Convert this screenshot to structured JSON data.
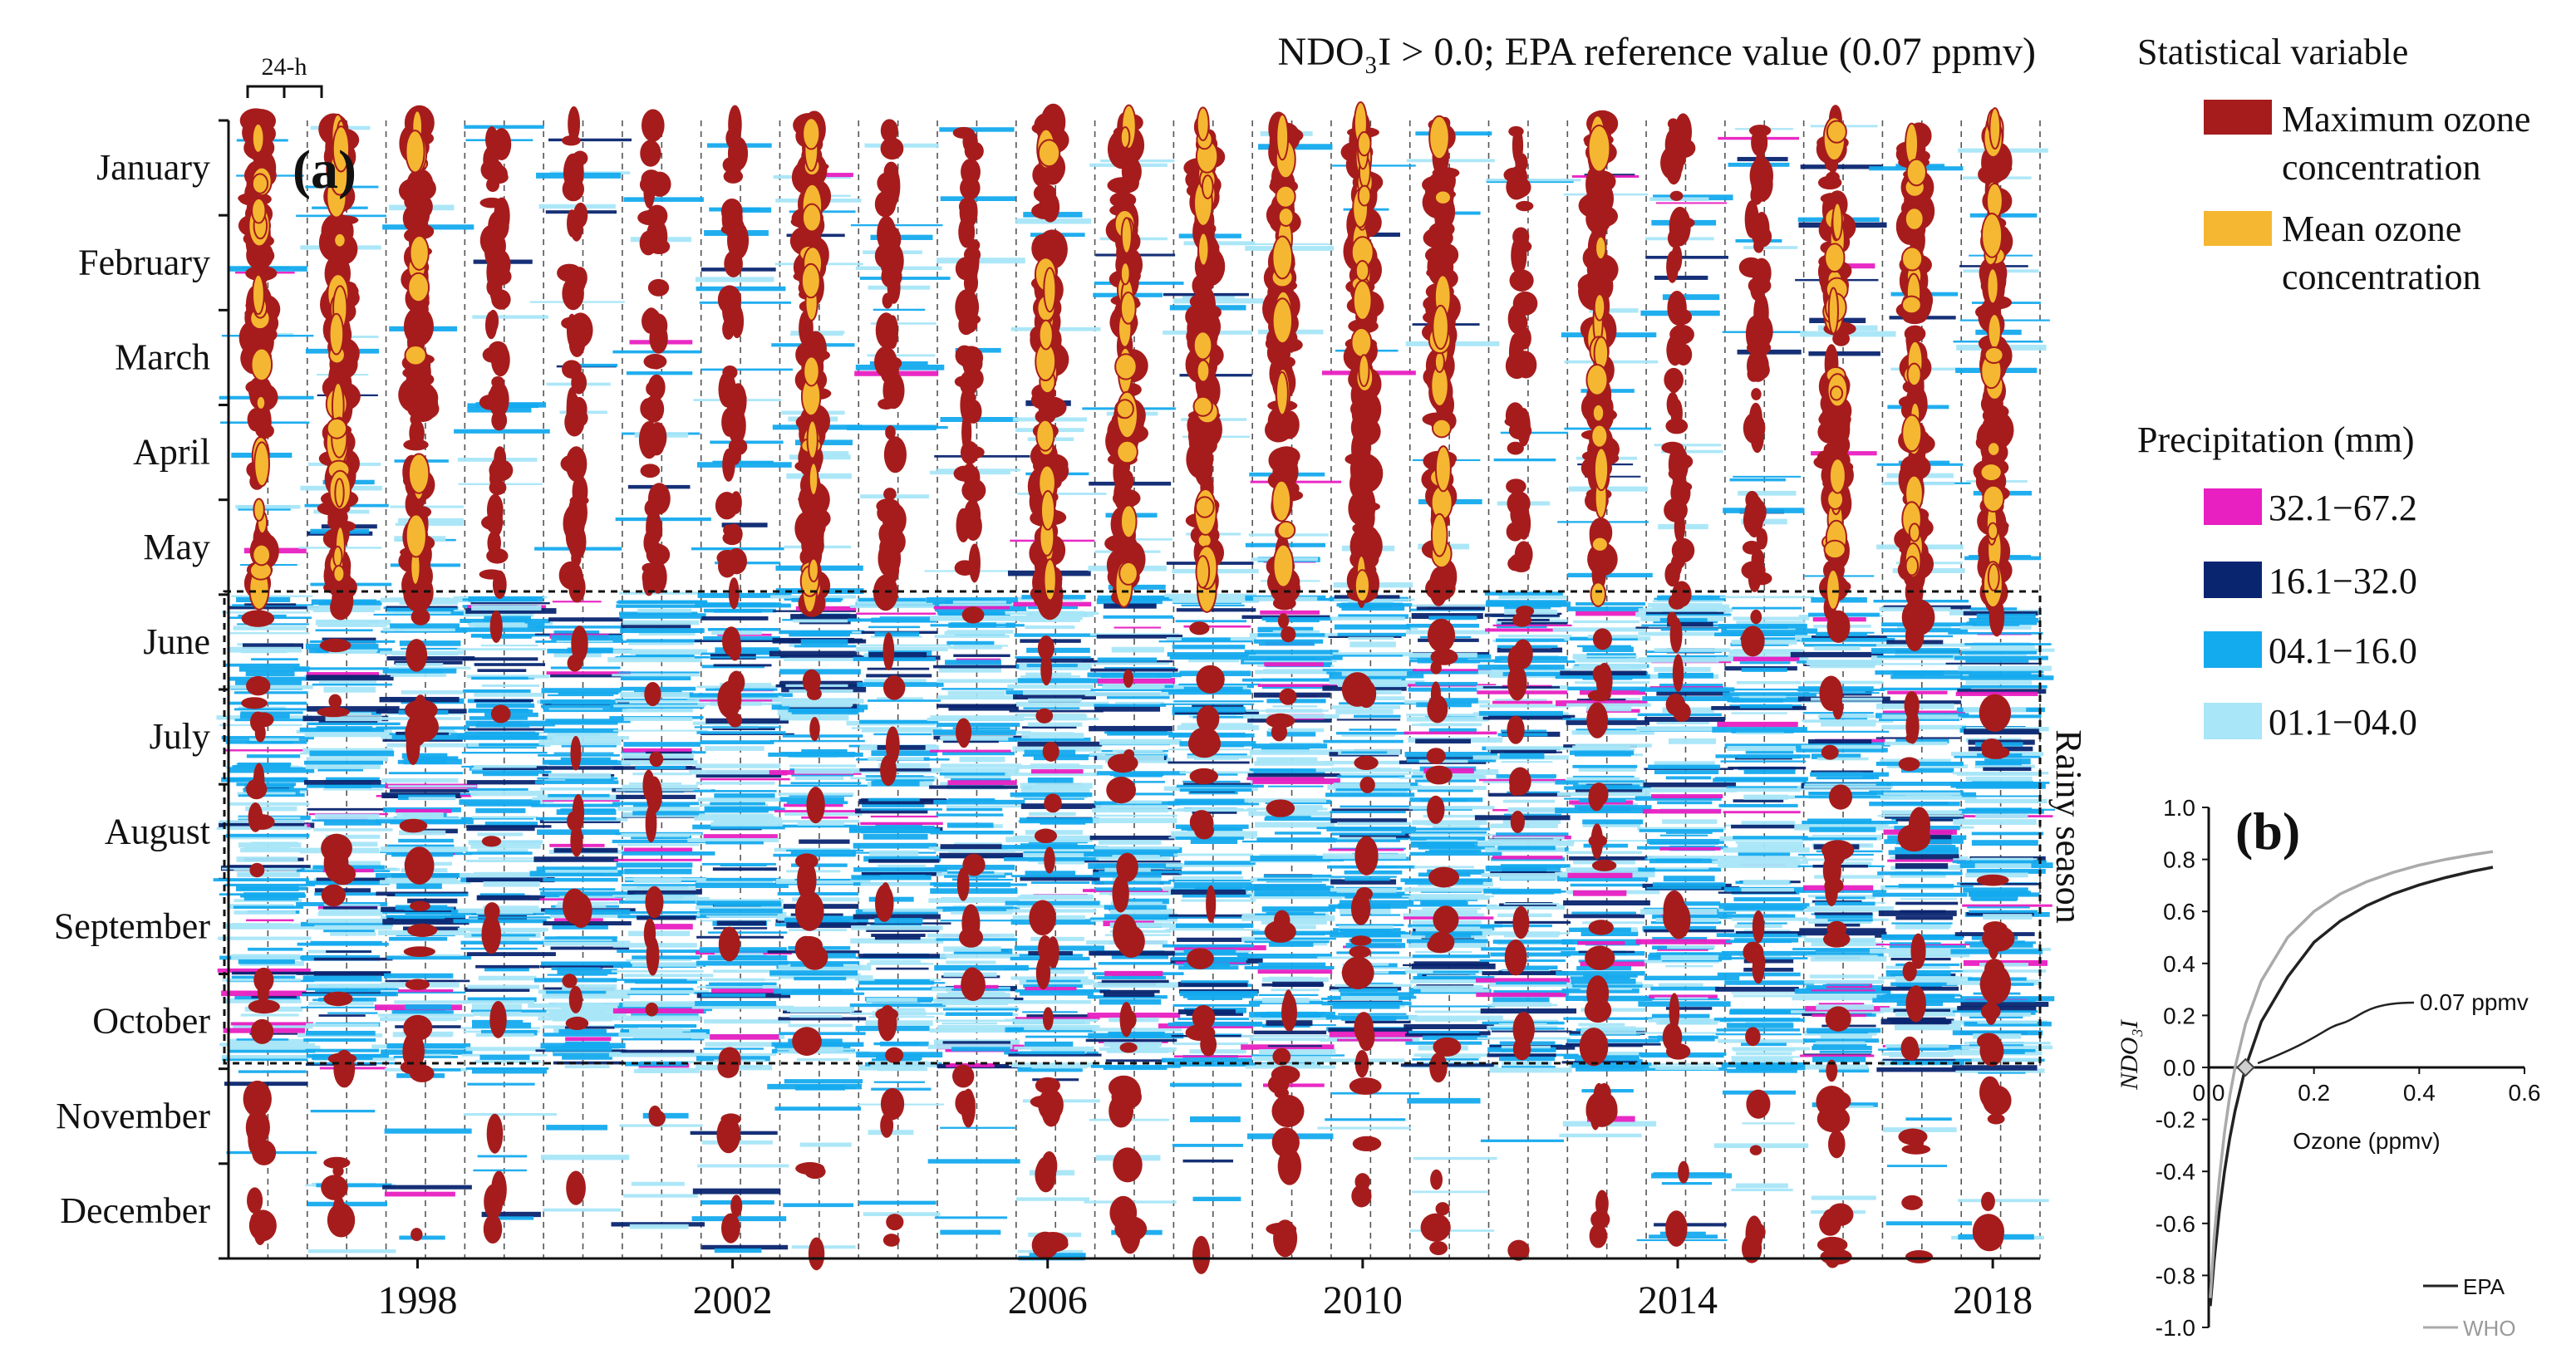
{
  "chart_data": [
    {
      "panel_label": "(a)",
      "type": "heatmap",
      "title": "NDO₃I > 0.0; EPA reference value (0.07 ppmv)",
      "scale_marker": "24-h",
      "x_axis": {
        "range": [
          1996,
          2019
        ],
        "ticks": [
          "1998",
          "2002",
          "2006",
          "2010",
          "2014",
          "2018"
        ]
      },
      "y_axis": {
        "months": [
          "January",
          "February",
          "March",
          "April",
          "May",
          "June",
          "July",
          "August",
          "September",
          "October",
          "November",
          "December"
        ]
      },
      "annotation": "Rainy season",
      "rainy_season": {
        "start_month": "June",
        "end_month": "October"
      },
      "legend_ozone": {
        "title": "Statistical variable",
        "items": [
          {
            "label_line1": "Maximum ozone",
            "label_line2": "concentration",
            "color": "#a61c1c"
          },
          {
            "label_line1": "Mean ozone",
            "label_line2": "concentration",
            "color": "#f5b731"
          }
        ]
      },
      "legend_precip": {
        "title": "Precipitation (mm)",
        "items": [
          {
            "label": "32.1−67.2",
            "color": "#e81fc1"
          },
          {
            "label": "16.1−32.0",
            "color": "#0a2570"
          },
          {
            "label": "04.1−16.0",
            "color": "#14aaee"
          },
          {
            "label": "01.1−04.0",
            "color": "#a8e6f8"
          }
        ]
      },
      "years_with_mean_exceedance": [
        1996,
        1997,
        1998,
        2003,
        2006,
        2007,
        2008,
        2009,
        2010,
        2011,
        2013,
        2016,
        2017,
        2018
      ]
    },
    {
      "panel_label": "(b)",
      "type": "line",
      "xlabel": "Ozone (ppmv)",
      "ylabel": "NDO₃I",
      "xlim": [
        0.0,
        0.6
      ],
      "ylim": [
        -1.0,
        1.0
      ],
      "x_ticks": [
        "0.0",
        "0.2",
        "0.4",
        "0.6"
      ],
      "y_ticks": [
        "1.0",
        "0.8",
        "0.6",
        "0.4",
        "0.2",
        "0.0",
        "-0.2",
        "-0.4",
        "-0.6",
        "-0.8",
        "-1.0"
      ],
      "annotation": "0.07 ppmv",
      "series": [
        {
          "name": "EPA",
          "color": "#222222",
          "reference": 0.07,
          "x": [
            0.003,
            0.01,
            0.02,
            0.03,
            0.04,
            0.05,
            0.07,
            0.1,
            0.15,
            0.2,
            0.25,
            0.3,
            0.35,
            0.4,
            0.45,
            0.5,
            0.54
          ],
          "y": [
            -0.918,
            -0.75,
            -0.556,
            -0.4,
            -0.273,
            -0.167,
            0.0,
            0.176,
            0.348,
            0.481,
            0.563,
            0.622,
            0.667,
            0.702,
            0.73,
            0.754,
            0.77
          ]
        },
        {
          "name": "WHO",
          "color": "#aaaaaa",
          "reference": 0.05,
          "x": [
            0.003,
            0.01,
            0.02,
            0.03,
            0.04,
            0.05,
            0.07,
            0.1,
            0.15,
            0.2,
            0.25,
            0.3,
            0.35,
            0.4,
            0.45,
            0.5,
            0.54
          ],
          "y": [
            -0.887,
            -0.667,
            -0.429,
            -0.25,
            -0.111,
            0.0,
            0.167,
            0.333,
            0.5,
            0.6,
            0.667,
            0.714,
            0.75,
            0.778,
            0.8,
            0.818,
            0.83
          ]
        }
      ]
    }
  ]
}
